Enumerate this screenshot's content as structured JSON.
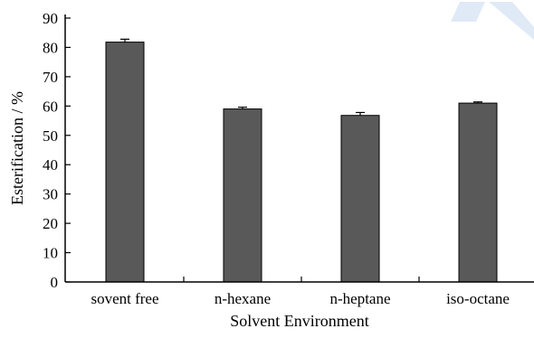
{
  "chart_data": {
    "type": "bar",
    "categories": [
      "sovent free",
      "n-hexane",
      "n-heptane",
      "iso-octane"
    ],
    "values": [
      81.8,
      59.0,
      56.8,
      61.0
    ],
    "errors": [
      1.0,
      0.6,
      1.0,
      0.4
    ],
    "title": "",
    "xlabel": "Solvent Environment",
    "ylabel": "Esterification / %",
    "ylim": [
      0,
      90
    ],
    "yticks": [
      0,
      10,
      20,
      30,
      40,
      50,
      60,
      70,
      80,
      90
    ],
    "grid": false,
    "bar_color": "#595959"
  },
  "watermark_color": "#c6d8ee"
}
